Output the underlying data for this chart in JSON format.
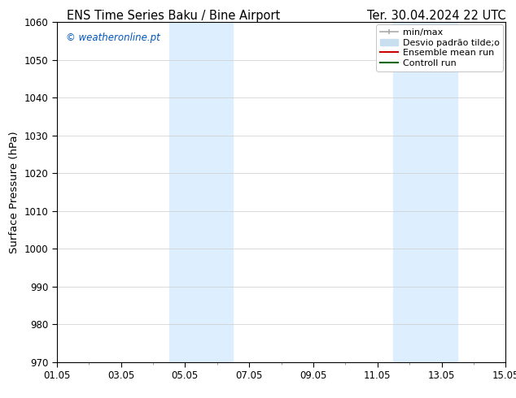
{
  "title_left": "ENS Time Series Baku / Bine Airport",
  "title_right": "Ter. 30.04.2024 22 UTC",
  "ylabel": "Surface Pressure (hPa)",
  "ylim": [
    970,
    1060
  ],
  "yticks": [
    970,
    980,
    990,
    1000,
    1010,
    1020,
    1030,
    1040,
    1050,
    1060
  ],
  "xlabel_ticks": [
    "01.05",
    "03.05",
    "05.05",
    "07.05",
    "09.05",
    "11.05",
    "13.05",
    "15.05"
  ],
  "xtick_positions": [
    0,
    2,
    4,
    6,
    8,
    10,
    12,
    14
  ],
  "xlim": [
    0,
    14
  ],
  "shaded_regions": [
    {
      "xstart": 3.5,
      "xend": 5.5
    },
    {
      "xstart": 10.5,
      "xend": 12.5
    }
  ],
  "shaded_color": "#ddeeff",
  "watermark_text": "© weatheronline.pt",
  "watermark_color": "#0055bb",
  "legend_minmax_color": "#aaaaaa",
  "legend_desvio_color": "#c8dff0",
  "legend_ensemble_color": "#cc0000",
  "legend_control_color": "#006600",
  "bg_color": "#ffffff",
  "plot_bg_color": "#ffffff",
  "grid_color": "#cccccc",
  "spine_color": "#000000",
  "title_fontsize": 10.5,
  "tick_fontsize": 8.5,
  "label_fontsize": 9.5,
  "watermark_fontsize": 8.5,
  "legend_fontsize": 8
}
